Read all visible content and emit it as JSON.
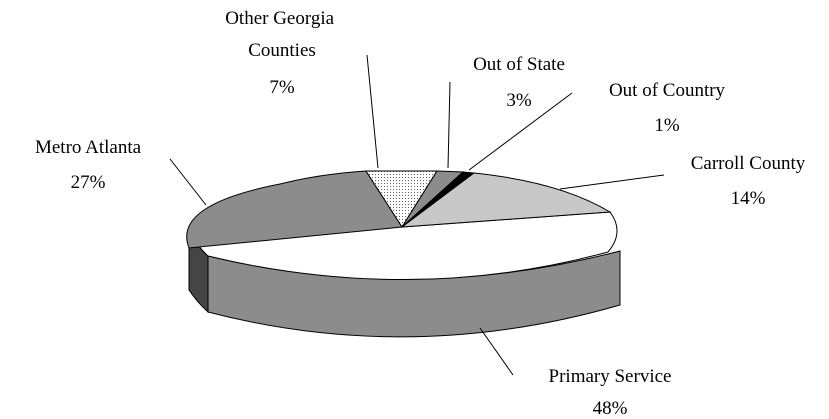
{
  "chart_data": {
    "type": "pie",
    "style": "3d-exploded-tilted",
    "slices": [
      {
        "label": [
          "Primary Service"
        ],
        "value_label": "48%",
        "value": 48,
        "color": "#ffffff",
        "side_color": "#8c8c8c"
      },
      {
        "label": [
          "Metro Atlanta"
        ],
        "value_label": "27%",
        "value": 27,
        "color": "#8c8c8c",
        "side_color": "#454545"
      },
      {
        "label": [
          "Other Georgia",
          "Counties"
        ],
        "value_label": "7%",
        "value": 7,
        "color": "#e8e8e8",
        "pattern": "dotted"
      },
      {
        "label": [
          "Out of State"
        ],
        "value_label": "3%",
        "value": 3,
        "color": "#8c8c8c"
      },
      {
        "label": [
          "Out of Country"
        ],
        "value_label": "1%",
        "value": 1,
        "color": "#000000"
      },
      {
        "label": [
          "Carroll County"
        ],
        "value_label": "14%",
        "value": 14,
        "color": "#c8c8c8"
      }
    ]
  }
}
